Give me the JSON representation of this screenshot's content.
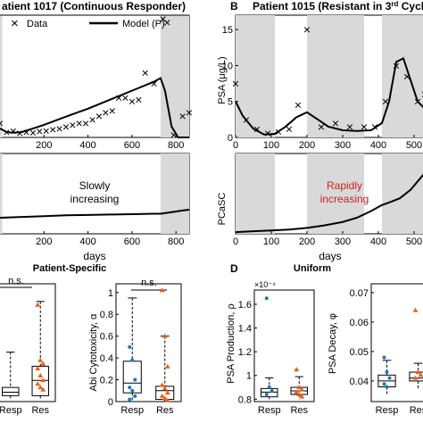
{
  "panels": {
    "A_top": {
      "title": "atient 1017 (Continuous Responder)",
      "legend": {
        "data": "Data",
        "model": "Model (P)"
      }
    },
    "B_top": {
      "letter": "B",
      "title_prefix": "Patient 1015 (Resistant in 3",
      "title_sup": "rd",
      "title_suffix": " Cycl",
      "ylabel": "PSA (μg/L)"
    },
    "A_mid": {
      "annotation_line1": "Slowly",
      "annotation_line2": "increasing",
      "xlabel": "days"
    },
    "B_mid": {
      "annotation_line1": "Rapidly",
      "annotation_line2": "increasing",
      "ylabel": "PCaSC",
      "xlabel": "days"
    },
    "C": {
      "title": "Patient-Specific",
      "ns_left": "n.s.",
      "ns_right": "n.s.",
      "ylabel": "Abi Cytotoxicity, α"
    },
    "D": {
      "letter": "D",
      "title": "Uniform",
      "ylabel_left": "PSA Production, ρ",
      "exponent": "×10⁻⁴",
      "ylabel_right": "PSA Decay, φ"
    }
  },
  "colors": {
    "data_marker": "#2b2bd1",
    "model_line": "#000000",
    "shade": "#d9d9d9",
    "resp_points": "#1f77b4",
    "res_points": "#e8601c",
    "annotation_red": "#cc1f1f"
  },
  "chart_data": [
    {
      "type": "scatter",
      "panel": "A-top",
      "x_ticks": [
        "200",
        "400",
        "600",
        "800"
      ],
      "xlim": [
        0,
        860
      ],
      "shaded_days": [
        [
          0,
          10
        ],
        [
          730,
          860
        ]
      ],
      "series": [
        {
          "name": "Data",
          "x": [
            0,
            30,
            60,
            90,
            120,
            150,
            180,
            210,
            240,
            270,
            300,
            330,
            360,
            390,
            420,
            450,
            480,
            510,
            540,
            570,
            600,
            630,
            660,
            700,
            740,
            760,
            790,
            830,
            860
          ],
          "y": [
            3,
            0.5,
            0.8,
            0.2,
            0.5,
            0.4,
            0.7,
            0.8,
            1.2,
            1.5,
            2,
            2.5,
            3,
            3,
            4,
            5,
            6,
            6.5,
            10,
            10,
            9,
            9.5,
            17,
            14,
            32,
            31,
            -4,
            5,
            6
          ]
        },
        {
          "name": "Model (P)",
          "x": [
            0,
            30,
            60,
            100,
            200,
            300,
            400,
            500,
            600,
            700,
            730,
            750,
            780,
            810,
            840,
            860
          ],
          "y": [
            1.5,
            0.5,
            0.3,
            0.5,
            2.5,
            4.8,
            7,
            9.5,
            12,
            14.5,
            15.5,
            12,
            2,
            -1.5,
            -2.5,
            -3
          ]
        }
      ]
    },
    {
      "type": "scatter",
      "panel": "B-top",
      "x_ticks": [
        "0",
        "100",
        "200",
        "300",
        "400",
        "500"
      ],
      "y_ticks": [
        "0",
        "5",
        "10",
        "15"
      ],
      "xlim": [
        0,
        530
      ],
      "ylim": [
        0,
        17
      ],
      "shaded_days": [
        [
          0,
          110
        ],
        [
          200,
          360
        ],
        [
          410,
          530
        ]
      ],
      "series": [
        {
          "name": "Data",
          "x": [
            0,
            30,
            60,
            90,
            120,
            150,
            175,
            200,
            240,
            280,
            320,
            360,
            390,
            420,
            450,
            480,
            510,
            530
          ],
          "y": [
            7.5,
            2.5,
            1.2,
            0.6,
            0.8,
            1.2,
            4.5,
            15,
            1.5,
            2,
            1.5,
            1.5,
            1.5,
            5,
            10,
            8.5,
            5,
            6
          ]
        },
        {
          "name": "Model (P)",
          "x": [
            0,
            20,
            50,
            80,
            110,
            140,
            170,
            200,
            230,
            260,
            300,
            340,
            380,
            410,
            430,
            450,
            470,
            490,
            510,
            530
          ],
          "y": [
            5,
            3,
            1.2,
            0.4,
            0.5,
            1.5,
            2.8,
            3.5,
            2.5,
            1.5,
            1,
            0.9,
            1,
            2,
            5,
            10.5,
            11,
            8,
            5,
            4
          ]
        }
      ]
    },
    {
      "type": "line",
      "panel": "A-mid",
      "x_ticks": [
        "200",
        "400",
        "600",
        "800"
      ],
      "xlabel": "days",
      "xlim": [
        0,
        860
      ],
      "shaded_days": [
        [
          0,
          10
        ],
        [
          730,
          860
        ]
      ],
      "series": [
        {
          "name": "",
          "x": [
            0,
            100,
            200,
            300,
            400,
            500,
            600,
            700,
            730,
            780,
            830,
            860
          ],
          "y": [
            0.2,
            0.21,
            0.22,
            0.23,
            0.235,
            0.24,
            0.245,
            0.25,
            0.25,
            0.27,
            0.29,
            0.3
          ]
        }
      ]
    },
    {
      "type": "line",
      "panel": "B-mid",
      "x_ticks": [
        "0",
        "100",
        "200",
        "300",
        "400",
        "500"
      ],
      "xlabel": "days",
      "xlim": [
        0,
        530
      ],
      "shaded_days": [
        [
          0,
          110
        ],
        [
          200,
          360
        ],
        [
          410,
          530
        ]
      ],
      "series": [
        {
          "name": "",
          "x": [
            0,
            50,
            100,
            150,
            200,
            250,
            300,
            340,
            380,
            410,
            430,
            460,
            490,
            510,
            530
          ],
          "y": [
            0.02,
            0.03,
            0.04,
            0.05,
            0.07,
            0.1,
            0.14,
            0.19,
            0.27,
            0.34,
            0.37,
            0.42,
            0.52,
            0.62,
            0.72
          ]
        }
      ]
    },
    {
      "type": "box",
      "panel": "C-left",
      "categories": [
        "Resp",
        "Res"
      ],
      "boxes": [
        {
          "q1": 0.05,
          "median": 0.08,
          "q3": 0.12,
          "whisker_low": 0.02,
          "whisker_high": 0.42
        },
        {
          "q1": 0.05,
          "median": 0.18,
          "q3": 0.3,
          "whisker_low": 0.02,
          "whisker_high": 0.85,
          "points": [
            0.82,
            0.35,
            0.32,
            0.28,
            0.22,
            0.18,
            0.15,
            0.12,
            0.1
          ]
        }
      ]
    },
    {
      "type": "box",
      "panel": "C-right",
      "categories": [
        "Resp",
        "Res"
      ],
      "y_ticks": [
        "0",
        "0.2",
        "0.4",
        "0.6",
        "0.8",
        "1"
      ],
      "ylim": [
        0,
        1.08
      ],
      "boxes": [
        {
          "q1": 0.08,
          "median": 0.17,
          "q3": 0.37,
          "whisker_low": 0.0,
          "whisker_high": 0.95,
          "points": [
            0.5,
            0.38,
            0.2,
            0.13,
            0.1,
            0.05,
            0.02
          ]
        },
        {
          "q1": 0.02,
          "median": 0.1,
          "q3": 0.14,
          "whisker_low": 0.0,
          "whisker_high": 0.6,
          "points": [
            1.02,
            0.6,
            0.32,
            0.15,
            0.12,
            0.08,
            0.05,
            0.03,
            0.01
          ]
        }
      ]
    },
    {
      "type": "box",
      "panel": "D-left",
      "categories": [
        "Resp",
        "Res"
      ],
      "y_ticks": [
        "0.8",
        "1",
        "1.2",
        "1.4",
        "1.6"
      ],
      "ylim": [
        0.78,
        1.72
      ],
      "boxes": [
        {
          "q1": 0.82,
          "median": 0.86,
          "q3": 0.89,
          "whisker_low": 0.8,
          "whisker_high": 0.98,
          "points": [
            1.65,
            0.9,
            0.87,
            0.84
          ]
        },
        {
          "q1": 0.84,
          "median": 0.87,
          "q3": 0.9,
          "whisker_low": 0.8,
          "whisker_high": 0.99,
          "points": [
            1.05,
            0.9,
            0.88,
            0.86,
            0.84,
            0.82
          ]
        }
      ]
    },
    {
      "type": "box",
      "panel": "D-right",
      "categories": [
        "Resp",
        "Res"
      ],
      "y_ticks": [
        "0.04",
        "0.05",
        "0.06",
        "0.07"
      ],
      "ylim": [
        0.033,
        0.073
      ],
      "boxes": [
        {
          "q1": 0.038,
          "median": 0.04,
          "q3": 0.042,
          "whisker_low": 0.035,
          "whisker_high": 0.047,
          "points": [
            0.048,
            0.043,
            0.041,
            0.039,
            0.038
          ]
        },
        {
          "q1": 0.04,
          "median": 0.041,
          "q3": 0.043,
          "whisker_low": 0.037,
          "whisker_high": 0.046,
          "points": [
            0.064,
            0.043,
            0.042,
            0.041
          ]
        }
      ]
    }
  ]
}
